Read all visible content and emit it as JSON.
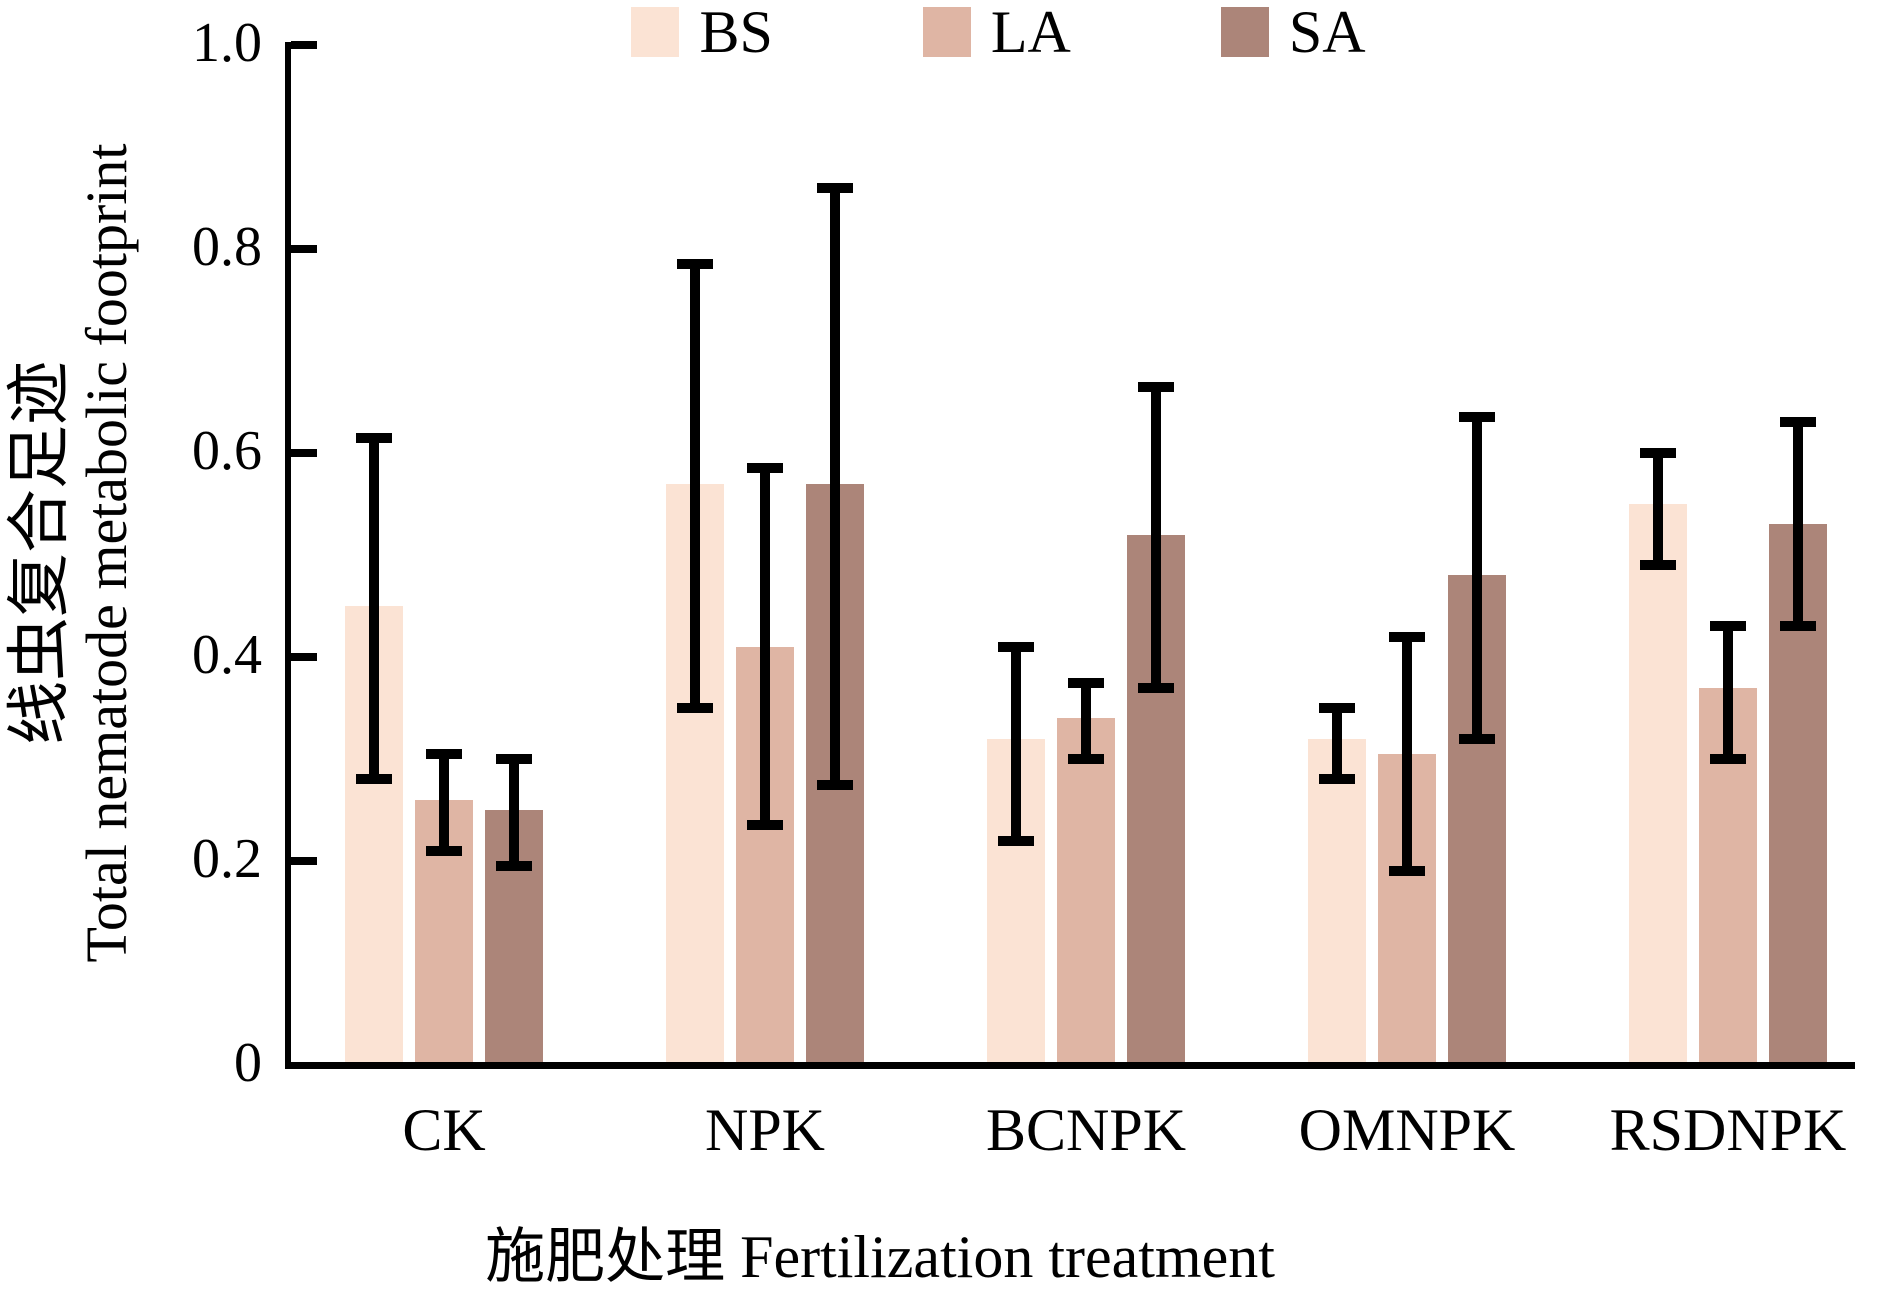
{
  "chart_data": {
    "type": "bar",
    "title": "",
    "categories": [
      "CK",
      "NPK",
      "BCNPK",
      "OMNPK",
      "RSDNPK"
    ],
    "series": [
      {
        "name": "BS",
        "color": "#fbe3d4",
        "values": [
          0.45,
          0.57,
          0.32,
          0.32,
          0.55
        ],
        "err_low": [
          0.28,
          0.35,
          0.22,
          0.28,
          0.49
        ],
        "err_high": [
          0.615,
          0.785,
          0.41,
          0.35,
          0.6
        ]
      },
      {
        "name": "LA",
        "color": "#dfb5a4",
        "values": [
          0.26,
          0.41,
          0.34,
          0.305,
          0.37
        ],
        "err_low": [
          0.21,
          0.235,
          0.3,
          0.19,
          0.3
        ],
        "err_high": [
          0.305,
          0.585,
          0.375,
          0.42,
          0.43
        ]
      },
      {
        "name": "SA",
        "color": "#ac8579",
        "values": [
          0.25,
          0.57,
          0.52,
          0.48,
          0.53
        ],
        "err_low": [
          0.195,
          0.275,
          0.37,
          0.32,
          0.43
        ],
        "err_high": [
          0.3,
          0.86,
          0.665,
          0.635,
          0.63
        ]
      }
    ],
    "xlabel": "施肥处理 Fertilization treatment",
    "ylabel_line1": "线虫复合足迹",
    "ylabel_line2": "Total nematode metabolic footprint",
    "ylim": [
      0,
      1.0
    ],
    "ytick_values": [
      1.0,
      0.8,
      0.6,
      0.4,
      0.2,
      0
    ],
    "yticks": [
      "1.0",
      "0.8",
      "0.6",
      "0.4",
      "0.2",
      "0"
    ],
    "legend_position": "top-center",
    "grid": false,
    "error_bars": true,
    "axis_color": "#000000"
  }
}
